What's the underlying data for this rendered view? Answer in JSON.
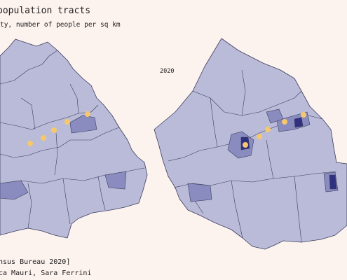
{
  "header": {
    "title": "population tracts",
    "subtitle": "ty, number of people per sq km"
  },
  "maps": [
    {
      "label": "2020"
    }
  ],
  "footer": {
    "source": "nsus Bureau 2020]",
    "credit": "ca Mauri, Sara Ferrini"
  }
}
